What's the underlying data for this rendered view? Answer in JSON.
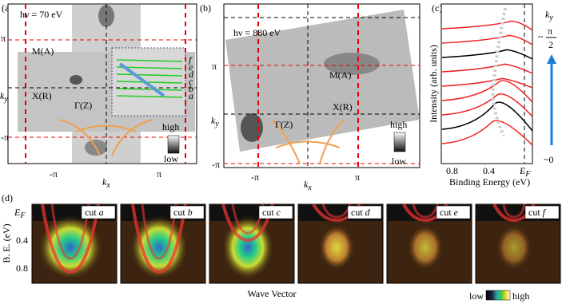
{
  "panel_a": {
    "label": "(a)",
    "photon_energy": "hν = 70 eV",
    "points": {
      "m": "M(A)",
      "x": "X(R)",
      "gamma": "Γ(Z)"
    },
    "y_ticks": [
      "π",
      "-π"
    ],
    "y_axis": {
      "main": "k",
      "sub": "y"
    },
    "x_ticks": [
      "-π",
      "π"
    ],
    "x_axis": {
      "main": "k",
      "sub": "x"
    },
    "colorbar": [
      "high",
      "low"
    ],
    "cuts": [
      "f",
      "e",
      "d",
      "c",
      "b",
      "a"
    ]
  },
  "panel_b": {
    "label": "(b)",
    "photon_energy": "hν = 880 eV",
    "points": {
      "m": "M(A)",
      "x": "X(R)",
      "gamma": "Γ(Z)"
    },
    "y_ticks": [
      "π",
      "-π"
    ],
    "y_axis": {
      "main": "k",
      "sub": "y"
    },
    "x_ticks": [
      "-π",
      "π"
    ],
    "x_axis": {
      "main": "k",
      "sub": "x"
    },
    "colorbar": [
      "high",
      "low"
    ]
  },
  "panel_c": {
    "label": "(c)",
    "y_axis": "Intensity (arb. units)",
    "x_ticks": [
      "0.8",
      "0.4"
    ],
    "x_tick_ef": {
      "main": "E",
      "sub": "F"
    },
    "x_axis": "Binding Energy (eV)",
    "ky": {
      "main": "k",
      "sub": "y"
    },
    "top": {
      "tilde": "~",
      "num": "π",
      "den": "2"
    },
    "bottom": "~0"
  },
  "panel_d": {
    "label": "(d)",
    "y_tick_ef": {
      "main": "E",
      "sub": "F"
    },
    "y_ticks": [
      "0.4",
      "0.8"
    ],
    "y_axis": "B. E. (eV)",
    "x_axis": "Wave Vector",
    "cuts": [
      {
        "word": "cut",
        "letter": "a"
      },
      {
        "word": "cut",
        "letter": "b"
      },
      {
        "word": "cut",
        "letter": "c"
      },
      {
        "word": "cut",
        "letter": "d"
      },
      {
        "word": "cut",
        "letter": "e"
      },
      {
        "word": "cut",
        "letter": "f"
      }
    ],
    "colorbar": [
      "low",
      "high"
    ]
  }
}
